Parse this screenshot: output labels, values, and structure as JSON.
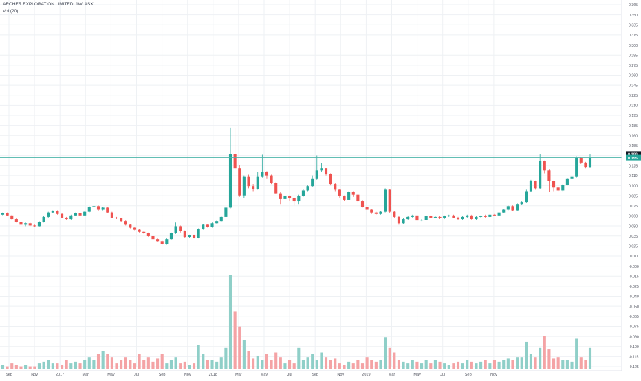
{
  "title": "ARCHER EXPLORATION LIMITED, 1W, ASX",
  "volume_indicator": "Vol (20)",
  "colors": {
    "up": "#26a69a",
    "down": "#ef5350",
    "up_volume": "#8fcfc8",
    "down_volume": "#f4a3a5",
    "grid": "#eef1f4",
    "line": "#2a2e39",
    "alert": "#4cb5a9"
  },
  "price_axis": {
    "ticks": [
      "0.365",
      "0.350",
      "0.335",
      "0.315",
      "0.300",
      "0.285",
      "0.275",
      "0.260",
      "0.245",
      "0.225",
      "0.210",
      "0.195",
      "0.185",
      "0.160",
      "0.155",
      "0.135",
      "0.125",
      "0.110",
      "0.100",
      "0.085",
      "0.075",
      "0.060",
      "0.050",
      "0.035",
      "0.025",
      "0.010",
      "-0.000",
      "-0.015",
      "-0.025",
      "-0.040",
      "-0.050",
      "-0.065",
      "-0.075",
      "-0.090",
      "-0.100",
      "-0.115",
      "-0.125"
    ]
  },
  "price_badges": {
    "current": "0.160",
    "secondary": "0.155"
  },
  "time_axis": {
    "labels": [
      "Sep",
      "Nov",
      "2017",
      "Mar",
      "May",
      "Jul",
      "Sep",
      "Nov",
      "2018",
      "Mar",
      "May",
      "Jul",
      "Sep",
      "Nov",
      "2019",
      "Mar",
      "May",
      "Jul",
      "Sep",
      "Nov"
    ]
  },
  "chart_data": {
    "type": "candlestick",
    "title": "ARCHER EXPLORATION LIMITED, 1W, ASX",
    "interval": "1W",
    "exchange": "ASX",
    "ylim": [
      -0.13,
      0.37
    ],
    "horizontal_lines": [
      0.16,
      0.155
    ],
    "candles": [
      [
        0.075,
        0.077,
        0.078,
        0.074,
        1.5
      ],
      [
        0.077,
        0.074,
        0.078,
        0.073,
        1.0
      ],
      [
        0.074,
        0.069,
        0.075,
        0.068,
        2.0
      ],
      [
        0.069,
        0.065,
        0.07,
        0.064,
        1.5
      ],
      [
        0.065,
        0.061,
        0.066,
        0.06,
        1.0
      ],
      [
        0.061,
        0.063,
        0.064,
        0.059,
        1.5
      ],
      [
        0.063,
        0.06,
        0.064,
        0.059,
        1.0
      ],
      [
        0.06,
        0.059,
        0.061,
        0.058,
        1.0
      ],
      [
        0.059,
        0.065,
        0.066,
        0.058,
        2.0
      ],
      [
        0.065,
        0.072,
        0.073,
        0.064,
        2.5
      ],
      [
        0.072,
        0.078,
        0.079,
        0.071,
        3.0
      ],
      [
        0.078,
        0.08,
        0.081,
        0.077,
        2.0
      ],
      [
        0.08,
        0.076,
        0.081,
        0.075,
        2.0
      ],
      [
        0.076,
        0.071,
        0.077,
        0.07,
        1.5
      ],
      [
        0.071,
        0.069,
        0.072,
        0.068,
        3.0
      ],
      [
        0.069,
        0.074,
        0.075,
        0.068,
        2.0
      ],
      [
        0.074,
        0.077,
        0.078,
        0.073,
        2.5
      ],
      [
        0.077,
        0.074,
        0.078,
        0.073,
        2.0
      ],
      [
        0.074,
        0.079,
        0.08,
        0.073,
        3.0
      ],
      [
        0.079,
        0.086,
        0.087,
        0.078,
        4.0
      ],
      [
        0.086,
        0.087,
        0.09,
        0.085,
        3.0
      ],
      [
        0.087,
        0.082,
        0.088,
        0.08,
        5.0
      ],
      [
        0.082,
        0.085,
        0.086,
        0.081,
        6.0
      ],
      [
        0.085,
        0.078,
        0.086,
        0.077,
        5.0
      ],
      [
        0.078,
        0.071,
        0.079,
        0.07,
        4.0
      ],
      [
        0.071,
        0.07,
        0.072,
        0.069,
        2.0
      ],
      [
        0.07,
        0.066,
        0.071,
        0.065,
        3.0
      ],
      [
        0.066,
        0.061,
        0.067,
        0.06,
        4.0
      ],
      [
        0.061,
        0.057,
        0.062,
        0.056,
        3.0
      ],
      [
        0.057,
        0.054,
        0.058,
        0.053,
        2.0
      ],
      [
        0.054,
        0.051,
        0.055,
        0.05,
        5.0
      ],
      [
        0.051,
        0.049,
        0.052,
        0.048,
        3.0
      ],
      [
        0.049,
        0.045,
        0.05,
        0.044,
        4.0
      ],
      [
        0.045,
        0.041,
        0.046,
        0.04,
        2.5
      ],
      [
        0.041,
        0.038,
        0.042,
        0.037,
        3.5
      ],
      [
        0.038,
        0.034,
        0.039,
        0.033,
        5.0
      ],
      [
        0.034,
        0.041,
        0.042,
        0.033,
        2.0
      ],
      [
        0.041,
        0.049,
        0.05,
        0.04,
        3.0
      ],
      [
        0.049,
        0.059,
        0.064,
        0.048,
        4.0
      ],
      [
        0.059,
        0.052,
        0.06,
        0.05,
        2.0
      ],
      [
        0.052,
        0.044,
        0.053,
        0.043,
        2.5
      ],
      [
        0.044,
        0.046,
        0.047,
        0.043,
        1.5
      ],
      [
        0.046,
        0.043,
        0.047,
        0.042,
        2.0
      ],
      [
        0.043,
        0.055,
        0.056,
        0.042,
        8.0
      ],
      [
        0.055,
        0.061,
        0.062,
        0.054,
        5.0
      ],
      [
        0.061,
        0.058,
        0.062,
        0.057,
        3.0
      ],
      [
        0.058,
        0.063,
        0.064,
        0.057,
        3.0
      ],
      [
        0.063,
        0.066,
        0.067,
        0.062,
        2.5
      ],
      [
        0.066,
        0.072,
        0.073,
        0.065,
        4.0
      ],
      [
        0.072,
        0.085,
        0.088,
        0.071,
        7.0
      ],
      [
        0.085,
        0.16,
        0.197,
        0.084,
        31.0
      ],
      [
        0.16,
        0.14,
        0.197,
        0.138,
        19.0
      ],
      [
        0.14,
        0.102,
        0.145,
        0.1,
        14.0
      ],
      [
        0.102,
        0.128,
        0.13,
        0.098,
        9.5
      ],
      [
        0.128,
        0.115,
        0.131,
        0.112,
        6.0
      ],
      [
        0.115,
        0.111,
        0.118,
        0.108,
        3.5
      ],
      [
        0.111,
        0.128,
        0.135,
        0.11,
        4.5
      ],
      [
        0.128,
        0.135,
        0.159,
        0.127,
        3.0
      ],
      [
        0.135,
        0.13,
        0.136,
        0.125,
        5.0
      ],
      [
        0.13,
        0.12,
        0.131,
        0.118,
        3.0
      ],
      [
        0.12,
        0.105,
        0.121,
        0.104,
        5.5
      ],
      [
        0.105,
        0.097,
        0.107,
        0.09,
        4.0
      ],
      [
        0.097,
        0.101,
        0.102,
        0.095,
        2.0
      ],
      [
        0.101,
        0.098,
        0.102,
        0.094,
        3.0
      ],
      [
        0.098,
        0.094,
        0.099,
        0.088,
        2.0
      ],
      [
        0.094,
        0.101,
        0.103,
        0.09,
        7.0
      ],
      [
        0.101,
        0.109,
        0.111,
        0.1,
        3.0
      ],
      [
        0.109,
        0.115,
        0.116,
        0.108,
        4.0
      ],
      [
        0.115,
        0.125,
        0.13,
        0.114,
        5.0
      ],
      [
        0.125,
        0.137,
        0.158,
        0.124,
        3.0
      ],
      [
        0.137,
        0.14,
        0.147,
        0.135,
        5.5
      ],
      [
        0.14,
        0.132,
        0.141,
        0.13,
        4.0
      ],
      [
        0.132,
        0.118,
        0.133,
        0.116,
        3.0
      ],
      [
        0.118,
        0.11,
        0.119,
        0.108,
        3.5
      ],
      [
        0.11,
        0.101,
        0.111,
        0.099,
        2.0
      ],
      [
        0.101,
        0.096,
        0.102,
        0.094,
        1.5
      ],
      [
        0.096,
        0.107,
        0.108,
        0.095,
        2.5
      ],
      [
        0.107,
        0.103,
        0.108,
        0.1,
        2.0
      ],
      [
        0.103,
        0.094,
        0.104,
        0.092,
        3.0
      ],
      [
        0.094,
        0.086,
        0.095,
        0.085,
        2.0
      ],
      [
        0.086,
        0.082,
        0.087,
        0.08,
        4.0
      ],
      [
        0.082,
        0.078,
        0.083,
        0.076,
        3.0
      ],
      [
        0.078,
        0.076,
        0.079,
        0.075,
        2.5
      ],
      [
        0.076,
        0.079,
        0.08,
        0.075,
        3.0
      ],
      [
        0.079,
        0.11,
        0.112,
        0.078,
        10.5
      ],
      [
        0.11,
        0.079,
        0.111,
        0.077,
        7.0
      ],
      [
        0.079,
        0.072,
        0.08,
        0.071,
        5.5
      ],
      [
        0.072,
        0.063,
        0.073,
        0.061,
        3.0
      ],
      [
        0.063,
        0.069,
        0.07,
        0.062,
        2.5
      ],
      [
        0.069,
        0.072,
        0.073,
        0.068,
        2.0
      ],
      [
        0.072,
        0.074,
        0.075,
        0.071,
        3.0
      ],
      [
        0.074,
        0.067,
        0.075,
        0.066,
        2.5
      ],
      [
        0.067,
        0.068,
        0.069,
        0.066,
        2.0
      ],
      [
        0.068,
        0.073,
        0.074,
        0.067,
        3.0
      ],
      [
        0.073,
        0.071,
        0.074,
        0.07,
        2.0
      ],
      [
        0.071,
        0.072,
        0.073,
        0.07,
        3.0
      ],
      [
        0.072,
        0.07,
        0.073,
        0.069,
        2.5
      ],
      [
        0.07,
        0.073,
        0.074,
        0.069,
        2.0
      ],
      [
        0.073,
        0.074,
        0.075,
        0.072,
        1.5
      ],
      [
        0.074,
        0.071,
        0.075,
        0.07,
        2.0
      ],
      [
        0.071,
        0.069,
        0.072,
        0.068,
        2.5
      ],
      [
        0.069,
        0.072,
        0.073,
        0.068,
        2.0
      ],
      [
        0.072,
        0.074,
        0.075,
        0.071,
        3.0
      ],
      [
        0.074,
        0.069,
        0.075,
        0.068,
        2.5
      ],
      [
        0.069,
        0.072,
        0.073,
        0.068,
        2.0
      ],
      [
        0.072,
        0.073,
        0.074,
        0.071,
        2.5
      ],
      [
        0.073,
        0.072,
        0.075,
        0.071,
        3.0
      ],
      [
        0.072,
        0.075,
        0.076,
        0.071,
        2.0
      ],
      [
        0.075,
        0.074,
        0.076,
        0.073,
        3.0
      ],
      [
        0.074,
        0.078,
        0.079,
        0.073,
        2.5
      ],
      [
        0.078,
        0.082,
        0.083,
        0.077,
        3.0
      ],
      [
        0.082,
        0.087,
        0.088,
        0.081,
        3.5
      ],
      [
        0.087,
        0.081,
        0.088,
        0.08,
        3.0
      ],
      [
        0.081,
        0.09,
        0.091,
        0.08,
        4.0
      ],
      [
        0.09,
        0.093,
        0.094,
        0.089,
        4.0
      ],
      [
        0.093,
        0.108,
        0.11,
        0.092,
        9.0
      ],
      [
        0.108,
        0.122,
        0.124,
        0.107,
        5.0
      ],
      [
        0.122,
        0.112,
        0.123,
        0.11,
        4.0
      ],
      [
        0.112,
        0.15,
        0.16,
        0.111,
        7.0
      ],
      [
        0.15,
        0.137,
        0.151,
        0.133,
        11.0
      ],
      [
        0.137,
        0.122,
        0.139,
        0.107,
        6.5
      ],
      [
        0.122,
        0.113,
        0.123,
        0.108,
        3.5
      ],
      [
        0.113,
        0.109,
        0.114,
        0.108,
        4.0
      ],
      [
        0.109,
        0.117,
        0.118,
        0.108,
        3.0
      ],
      [
        0.117,
        0.125,
        0.126,
        0.116,
        3.0
      ],
      [
        0.125,
        0.128,
        0.129,
        0.121,
        2.5
      ],
      [
        0.128,
        0.155,
        0.157,
        0.127,
        10.0
      ],
      [
        0.155,
        0.148,
        0.156,
        0.146,
        4.0
      ],
      [
        0.148,
        0.142,
        0.149,
        0.14,
        3.0
      ],
      [
        0.142,
        0.155,
        0.16,
        0.141,
        7.0
      ]
    ],
    "volume_scale_max": 31
  }
}
